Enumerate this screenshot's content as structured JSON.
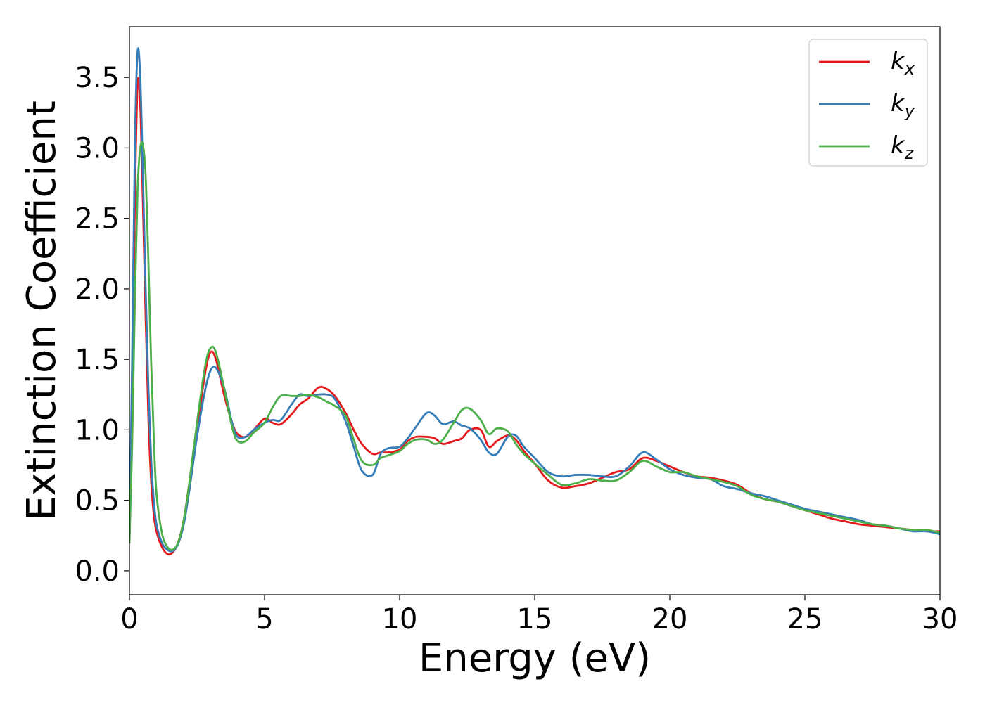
{
  "chart_data": {
    "type": "line",
    "xlabel": "Energy (eV)",
    "ylabel": "Extinction Coefficient",
    "xlim": [
      0,
      30
    ],
    "ylim": [
      -0.17,
      3.86
    ],
    "xticks": [
      0,
      5,
      10,
      15,
      20,
      25,
      30
    ],
    "xtick_labels": [
      "0",
      "5",
      "10",
      "15",
      "20",
      "25",
      "30"
    ],
    "yticks": [
      0.0,
      0.5,
      1.0,
      1.5,
      2.0,
      2.5,
      3.0,
      3.5
    ],
    "ytick_labels": [
      "0.0",
      "0.5",
      "1.0",
      "1.5",
      "2.0",
      "2.5",
      "3.0",
      "3.5"
    ],
    "grid": false,
    "legend_position": "top-right",
    "series": [
      {
        "name": "k",
        "subscript": "x",
        "color": "#e41a1c",
        "x": [
          0.0,
          0.1,
          0.2,
          0.3,
          0.4,
          0.5,
          0.6,
          0.7,
          0.8,
          0.9,
          1.0,
          1.2,
          1.4,
          1.6,
          1.8,
          2.0,
          2.2,
          2.5,
          2.8,
          3.0,
          3.2,
          3.5,
          3.8,
          4.0,
          4.3,
          4.6,
          5.0,
          5.3,
          5.6,
          6.0,
          6.3,
          6.6,
          7.0,
          7.3,
          7.6,
          8.0,
          8.3,
          8.6,
          9.0,
          9.3,
          9.6,
          10.0,
          10.3,
          10.6,
          11.0,
          11.3,
          11.6,
          12.0,
          12.3,
          12.6,
          13.0,
          13.3,
          13.6,
          14.0,
          14.3,
          14.6,
          15.0,
          15.5,
          16.0,
          16.5,
          17.0,
          17.5,
          18.0,
          18.5,
          19.0,
          19.5,
          20.0,
          20.5,
          21.0,
          21.5,
          22.0,
          22.5,
          23.0,
          23.5,
          24.0,
          24.5,
          25.0,
          25.5,
          26.0,
          26.5,
          27.0,
          27.5,
          28.0,
          28.5,
          29.0,
          29.5,
          30.0
        ],
        "y": [
          0.2,
          1.2,
          2.6,
          3.45,
          3.3,
          2.6,
          1.8,
          1.1,
          0.65,
          0.4,
          0.28,
          0.17,
          0.12,
          0.13,
          0.2,
          0.35,
          0.6,
          1.0,
          1.4,
          1.55,
          1.5,
          1.25,
          1.05,
          0.97,
          0.95,
          1.0,
          1.08,
          1.05,
          1.04,
          1.11,
          1.18,
          1.22,
          1.3,
          1.29,
          1.24,
          1.12,
          1.0,
          0.9,
          0.83,
          0.84,
          0.84,
          0.86,
          0.92,
          0.95,
          0.95,
          0.94,
          0.9,
          0.92,
          0.94,
          1.0,
          1.0,
          0.88,
          0.92,
          0.96,
          0.93,
          0.85,
          0.76,
          0.64,
          0.59,
          0.6,
          0.62,
          0.66,
          0.7,
          0.72,
          0.8,
          0.78,
          0.74,
          0.7,
          0.67,
          0.66,
          0.64,
          0.61,
          0.55,
          0.51,
          0.49,
          0.46,
          0.43,
          0.4,
          0.37,
          0.35,
          0.33,
          0.32,
          0.31,
          0.3,
          0.29,
          0.28,
          0.28
        ]
      },
      {
        "name": "k",
        "subscript": "y",
        "color": "#377eb8",
        "x": [
          0.0,
          0.1,
          0.2,
          0.3,
          0.4,
          0.5,
          0.6,
          0.7,
          0.8,
          0.9,
          1.0,
          1.2,
          1.4,
          1.6,
          1.8,
          2.0,
          2.2,
          2.5,
          2.8,
          3.0,
          3.2,
          3.5,
          3.8,
          4.0,
          4.3,
          4.6,
          5.0,
          5.3,
          5.6,
          6.0,
          6.3,
          6.6,
          7.0,
          7.3,
          7.6,
          8.0,
          8.3,
          8.6,
          9.0,
          9.3,
          9.6,
          10.0,
          10.3,
          10.6,
          11.0,
          11.3,
          11.6,
          12.0,
          12.3,
          12.6,
          13.0,
          13.3,
          13.6,
          14.0,
          14.3,
          14.6,
          15.0,
          15.5,
          16.0,
          16.5,
          17.0,
          17.5,
          18.0,
          18.5,
          19.0,
          19.5,
          20.0,
          20.5,
          21.0,
          21.5,
          22.0,
          22.5,
          23.0,
          23.5,
          24.0,
          24.5,
          25.0,
          25.5,
          26.0,
          26.5,
          27.0,
          27.5,
          28.0,
          28.5,
          29.0,
          29.5,
          30.0
        ],
        "y": [
          0.2,
          1.5,
          3.0,
          3.68,
          3.5,
          2.8,
          2.0,
          1.3,
          0.8,
          0.5,
          0.33,
          0.2,
          0.15,
          0.14,
          0.19,
          0.32,
          0.55,
          0.95,
          1.28,
          1.42,
          1.44,
          1.3,
          1.05,
          0.95,
          0.95,
          1.0,
          1.05,
          1.07,
          1.07,
          1.18,
          1.25,
          1.24,
          1.25,
          1.25,
          1.22,
          1.06,
          0.88,
          0.71,
          0.68,
          0.83,
          0.87,
          0.88,
          0.94,
          1.02,
          1.12,
          1.1,
          1.04,
          1.06,
          1.03,
          1.01,
          0.93,
          0.84,
          0.83,
          0.95,
          0.96,
          0.88,
          0.8,
          0.7,
          0.67,
          0.68,
          0.68,
          0.67,
          0.67,
          0.74,
          0.84,
          0.79,
          0.72,
          0.68,
          0.66,
          0.65,
          0.6,
          0.58,
          0.55,
          0.53,
          0.5,
          0.47,
          0.44,
          0.42,
          0.4,
          0.38,
          0.36,
          0.33,
          0.32,
          0.3,
          0.28,
          0.28,
          0.26
        ]
      },
      {
        "name": "k",
        "subscript": "z",
        "color": "#4daf4a",
        "x": [
          0.0,
          0.1,
          0.2,
          0.3,
          0.4,
          0.5,
          0.6,
          0.7,
          0.8,
          0.9,
          1.0,
          1.2,
          1.4,
          1.6,
          1.8,
          2.0,
          2.2,
          2.5,
          2.8,
          3.0,
          3.2,
          3.5,
          3.8,
          4.0,
          4.3,
          4.6,
          5.0,
          5.3,
          5.6,
          6.0,
          6.3,
          6.6,
          7.0,
          7.3,
          7.6,
          8.0,
          8.3,
          8.6,
          9.0,
          9.3,
          9.6,
          10.0,
          10.3,
          10.6,
          11.0,
          11.3,
          11.6,
          12.0,
          12.3,
          12.6,
          13.0,
          13.3,
          13.6,
          14.0,
          14.3,
          14.6,
          15.0,
          15.5,
          16.0,
          16.5,
          17.0,
          17.5,
          18.0,
          18.5,
          19.0,
          19.5,
          20.0,
          20.5,
          21.0,
          21.5,
          22.0,
          22.5,
          23.0,
          23.5,
          24.0,
          24.5,
          25.0,
          25.5,
          26.0,
          26.5,
          27.0,
          27.5,
          28.0,
          28.5,
          29.0,
          29.5,
          30.0
        ],
        "y": [
          0.2,
          0.9,
          1.9,
          2.7,
          3.0,
          3.02,
          2.8,
          2.2,
          1.5,
          0.95,
          0.55,
          0.27,
          0.17,
          0.15,
          0.2,
          0.35,
          0.6,
          1.05,
          1.45,
          1.58,
          1.55,
          1.3,
          1.02,
          0.92,
          0.92,
          0.98,
          1.05,
          1.16,
          1.24,
          1.24,
          1.24,
          1.25,
          1.23,
          1.2,
          1.17,
          1.1,
          0.93,
          0.78,
          0.75,
          0.8,
          0.82,
          0.85,
          0.9,
          0.93,
          0.93,
          0.9,
          0.93,
          1.05,
          1.14,
          1.15,
          1.07,
          0.97,
          1.01,
          0.99,
          0.9,
          0.83,
          0.76,
          0.68,
          0.61,
          0.62,
          0.65,
          0.64,
          0.64,
          0.7,
          0.78,
          0.74,
          0.7,
          0.7,
          0.67,
          0.65,
          0.63,
          0.6,
          0.54,
          0.51,
          0.49,
          0.46,
          0.43,
          0.41,
          0.39,
          0.37,
          0.35,
          0.33,
          0.32,
          0.3,
          0.29,
          0.29,
          0.27
        ]
      }
    ]
  }
}
